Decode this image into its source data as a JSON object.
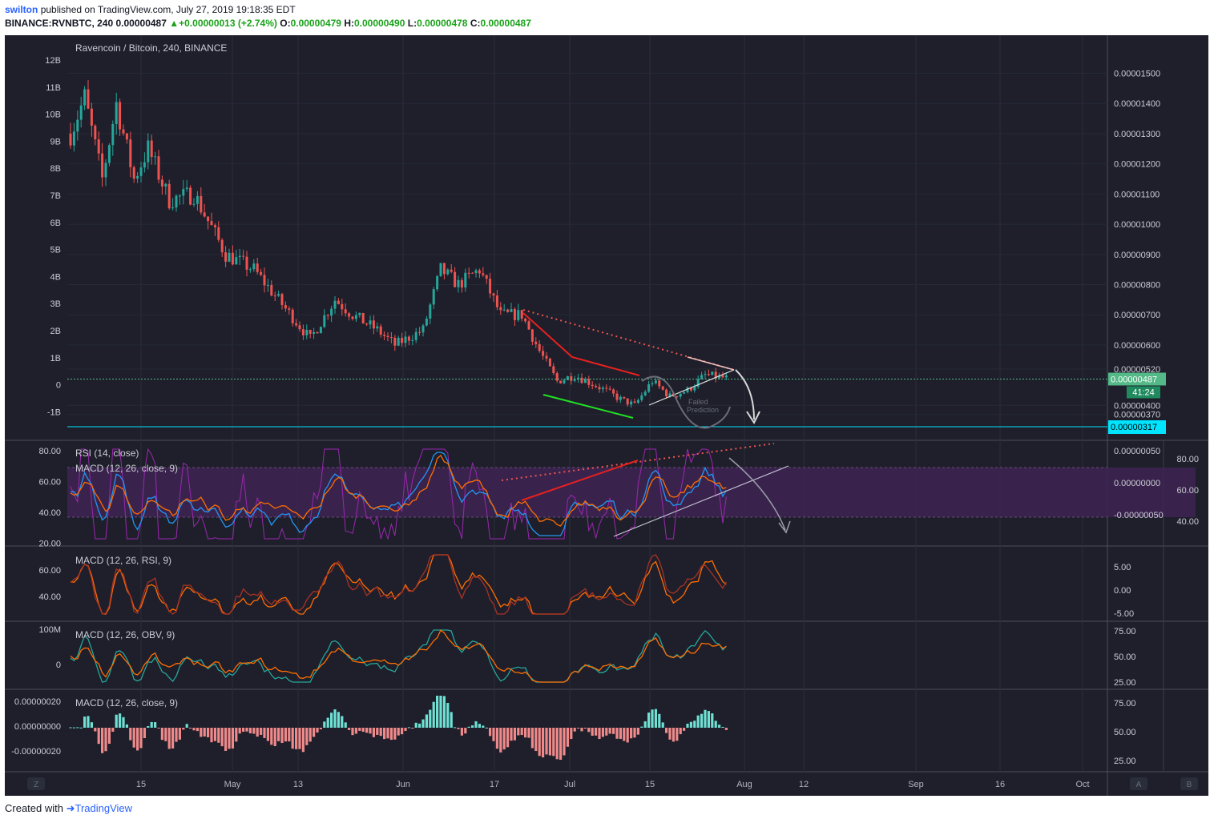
{
  "header": {
    "user": "swilton",
    "published_text": "published on TradingView.com, July 27, 2019 19:18:35 EDT",
    "symbol": "BINANCE:RVNBTC, 240",
    "last": "0.00000487",
    "change": "+0.00000013 (+2.74%)",
    "o_label": "O:",
    "o_value": "0.00000479",
    "h_label": "H:",
    "h_value": "0.00000490",
    "l_label": "L:",
    "l_value": "0.00000478",
    "c_label": "C:",
    "c_value": "0.00000487"
  },
  "footer": {
    "created_with": "Created with",
    "brand": "TradingView"
  },
  "colors": {
    "bg": "#1e1f2b",
    "up": "#26a69a",
    "down": "#ef5350",
    "price_line": "#53b987",
    "cyan": "#00e5ff",
    "rsi": "#9c27b0",
    "macd": "#2196f3",
    "signal": "#ff6d00"
  },
  "chart_data": {
    "type": "candlestick",
    "title": "Ravencoin / Bitcoin, 240, BINANCE",
    "x_ticks": [
      "15",
      "May",
      "13",
      "Jun",
      "17",
      "Jul",
      "15",
      "Aug",
      "12",
      "Sep",
      "16",
      "Oct"
    ],
    "price_ticks": [
      "0.00001500",
      "0.00001400",
      "0.00001300",
      "0.00001200",
      "0.00001100",
      "0.00001000",
      "0.00000900",
      "0.00000800",
      "0.00000700",
      "0.00000600",
      "0.00000520",
      "0.00000400",
      "0.00000370"
    ],
    "price_labels": {
      "last": "0.00000487",
      "timer": "41:24",
      "support": "0.00000317"
    },
    "volume_ticks": [
      "12B",
      "11B",
      "10B",
      "9B",
      "8B",
      "7B",
      "6B",
      "5B",
      "4B",
      "3B",
      "2B",
      "1B",
      "0",
      "-1B"
    ],
    "prediction_label_1": "Failed",
    "prediction_label_2": "Prediction",
    "price_path": [
      [
        0,
        1.3e-05
      ],
      [
        4,
        1.42e-05
      ],
      [
        9,
        1.15e-05
      ],
      [
        13,
        1.4e-05
      ],
      [
        18,
        1.15e-05
      ],
      [
        22,
        1.25e-05
      ],
      [
        28,
        1.08e-05
      ],
      [
        35,
        1.1e-05
      ],
      [
        44,
        9e-06
      ],
      [
        52,
        8.5e-06
      ],
      [
        61,
        7.2e-06
      ],
      [
        68,
        6.2e-06
      ],
      [
        75,
        7.5e-06
      ],
      [
        80,
        7e-06
      ],
      [
        87,
        6.5e-06
      ],
      [
        92,
        6e-06
      ],
      [
        100,
        6.5e-06
      ],
      [
        105,
        8.5e-06
      ],
      [
        110,
        8e-06
      ],
      [
        116,
        8.5e-06
      ],
      [
        122,
        7e-06
      ],
      [
        128,
        7e-06
      ],
      [
        133,
        5.8e-06
      ],
      [
        138,
        4.8e-06
      ],
      [
        143,
        5e-06
      ],
      [
        150,
        4.6e-06
      ],
      [
        156,
        4.2e-06
      ],
      [
        160,
        4e-06
      ],
      [
        165,
        4.8e-06
      ],
      [
        170,
        4.3e-06
      ],
      [
        175,
        4.5e-06
      ],
      [
        180,
        5e-06
      ],
      [
        186,
        4.9e-06
      ]
    ],
    "panes": [
      {
        "id": "rsi",
        "title": "RSI (14, close)",
        "title2": "MACD (12, 26, close, 9)",
        "left_ticks": [
          "80.00",
          "60.00",
          "40.00",
          "20.00"
        ],
        "right_ticks": [
          "0.00000050",
          "0.00000000",
          "-0.00000050"
        ],
        "right2_ticks": [
          "80.00",
          "60.00",
          "40.00"
        ]
      },
      {
        "id": "macd_rsi",
        "title": "MACD (12, 26, RSI, 9)",
        "left_ticks": [
          "60.00",
          "40.00"
        ],
        "right_ticks": [
          "5.00",
          "0.00",
          "-5.00"
        ]
      },
      {
        "id": "macd_obv",
        "title": "MACD (12, 26, OBV, 9)",
        "left_ticks": [
          "100M",
          "0"
        ],
        "right_ticks": [
          "75.00",
          "50.00",
          "25.00"
        ]
      },
      {
        "id": "macd_hist",
        "title": "MACD (12, 26, close, 9)",
        "left_ticks": [
          "0.00000020",
          "0.00000000",
          "-0.00000020"
        ],
        "right_ticks": [
          "75.00",
          "50.00",
          "25.00"
        ]
      }
    ],
    "corner_labels": {
      "z": "Z",
      "a": "A",
      "b": "B"
    }
  }
}
